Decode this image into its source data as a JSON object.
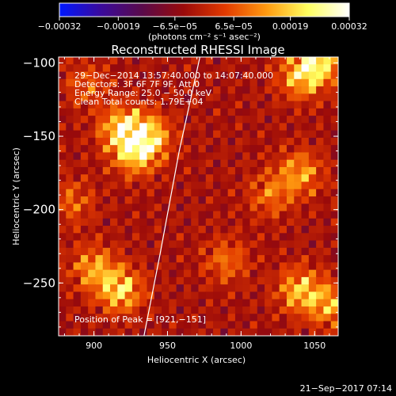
{
  "chart_data": {
    "type": "heatmap",
    "title": "Reconstructed RHESSI Image",
    "xlabel": "Heliocentric X (arcsec)",
    "ylabel": "Heliocentric Y (arcsec)",
    "xlim": [
      876,
      1066
    ],
    "ylim": [
      -286,
      -96
    ],
    "x_ticks": [
      {
        "v": 900,
        "label": "900"
      },
      {
        "v": 950,
        "label": "950"
      },
      {
        "v": 1000,
        "label": "1000"
      },
      {
        "v": 1050,
        "label": "1050"
      }
    ],
    "y_ticks": [
      {
        "v": -100,
        "label": "−100"
      },
      {
        "v": -150,
        "label": "−150"
      },
      {
        "v": -200,
        "label": "−200"
      },
      {
        "v": -250,
        "label": "−250"
      }
    ],
    "colorbar": {
      "range": [
        -0.00032,
        0.00032
      ],
      "ticks": [
        {
          "v": -0.00032,
          "label": "−0.00032"
        },
        {
          "v": -0.00019,
          "label": "−0.00019"
        },
        {
          "v": -6.5e-05,
          "label": "−6.5e−05"
        },
        {
          "v": 6.5e-05,
          "label": "6.5e−05"
        },
        {
          "v": 0.00019,
          "label": "0.00019"
        },
        {
          "v": 0.00032,
          "label": "0.00032"
        }
      ],
      "units": "(photons cm⁻² s⁻¹ asec⁻²)",
      "colors": [
        "#0018ff",
        "#3a0a9c",
        "#5a0a4a",
        "#9a0a0a",
        "#e23a00",
        "#ff9a10",
        "#ffff60",
        "#ffffff"
      ]
    },
    "grid": {
      "nx": 38,
      "ny": 38,
      "x0": 876,
      "y0": -96,
      "dx": 5,
      "dy": 5
    },
    "sources": [
      {
        "x": 919,
        "y": -145,
        "amp": 0.0003
      },
      {
        "x": 937,
        "y": -150,
        "amp": 0.00029
      },
      {
        "x": 928,
        "y": -162,
        "amp": 0.00025
      },
      {
        "x": 1052,
        "y": -100,
        "amp": 0.00032
      },
      {
        "x": 1040,
        "y": -110,
        "amp": 0.00022
      },
      {
        "x": 918,
        "y": -255,
        "amp": 0.0003
      },
      {
        "x": 900,
        "y": -240,
        "amp": 0.00022
      },
      {
        "x": 1040,
        "y": -255,
        "amp": 0.00026
      },
      {
        "x": 1060,
        "y": -265,
        "amp": 0.00022
      },
      {
        "x": 1040,
        "y": -175,
        "amp": 0.00022
      },
      {
        "x": 1020,
        "y": -190,
        "amp": 0.00016
      },
      {
        "x": 990,
        "y": -235,
        "amp": 0.00016
      },
      {
        "x": 885,
        "y": -195,
        "amp": 0.00014
      },
      {
        "x": 895,
        "y": -115,
        "amp": 0.00013
      }
    ],
    "limb_curve": {
      "x": [
        934,
        945,
        958,
        972
      ],
      "y": [
        -286,
        -230,
        -160,
        -96
      ]
    },
    "annotations": [
      "29−Dec−2014 13:57:40.000 to 14:07:40.000",
      "Detectors: 3F 6F 7F 9F, Att 0",
      "Energy Range: 25.0 − 50.0 keV",
      "Clean     Total counts: 1.79E+04"
    ],
    "peak_label": "Position of Peak = [921,−151]",
    "timestamp": "21−Sep−2017 07:14"
  }
}
